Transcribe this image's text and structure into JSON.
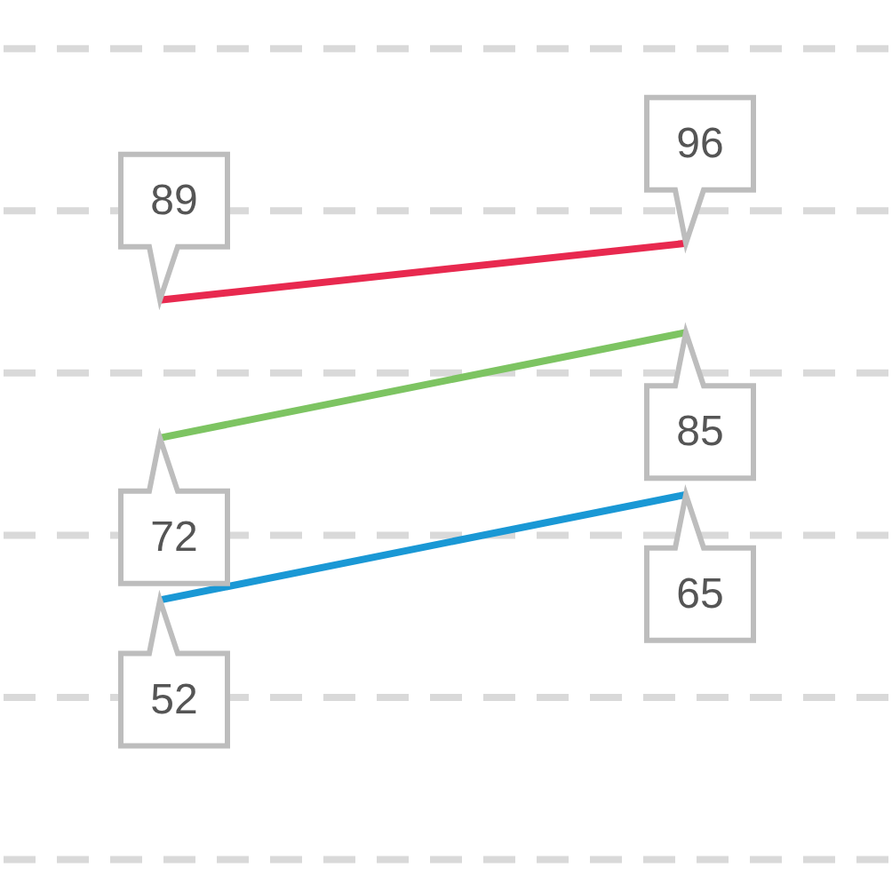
{
  "chart_data": {
    "type": "line",
    "categories": [
      null,
      null
    ],
    "marker": "none",
    "ref_lines": [
      {
        "axis": "y",
        "value": 20,
        "color": "#d9d9d9",
        "line_style": "dashed"
      },
      {
        "axis": "y",
        "value": 40,
        "color": "#d9d9d9",
        "line_style": "dashed"
      },
      {
        "axis": "y",
        "value": 60,
        "color": "#d9d9d9",
        "line_style": "dashed"
      },
      {
        "axis": "y",
        "value": 80,
        "color": "#d9d9d9",
        "line_style": "dashed"
      },
      {
        "axis": "y",
        "value": 100,
        "color": "#d9d9d9",
        "line_style": "dashed"
      },
      {
        "axis": "y",
        "value": 120,
        "color": "#d9d9d9",
        "line_style": "dashed"
      }
    ],
    "series": [
      {
        "color": "#e8294f",
        "values": [
          89,
          96
        ],
        "value_labels": [
          "89",
          "96"
        ]
      },
      {
        "color": "#7dc462",
        "values": [
          72,
          85
        ],
        "value_labels": [
          "72",
          "85"
        ]
      },
      {
        "color": "#1a98d5",
        "values": [
          52,
          65
        ],
        "value_labels": [
          "52",
          "65"
        ]
      }
    ]
  }
}
